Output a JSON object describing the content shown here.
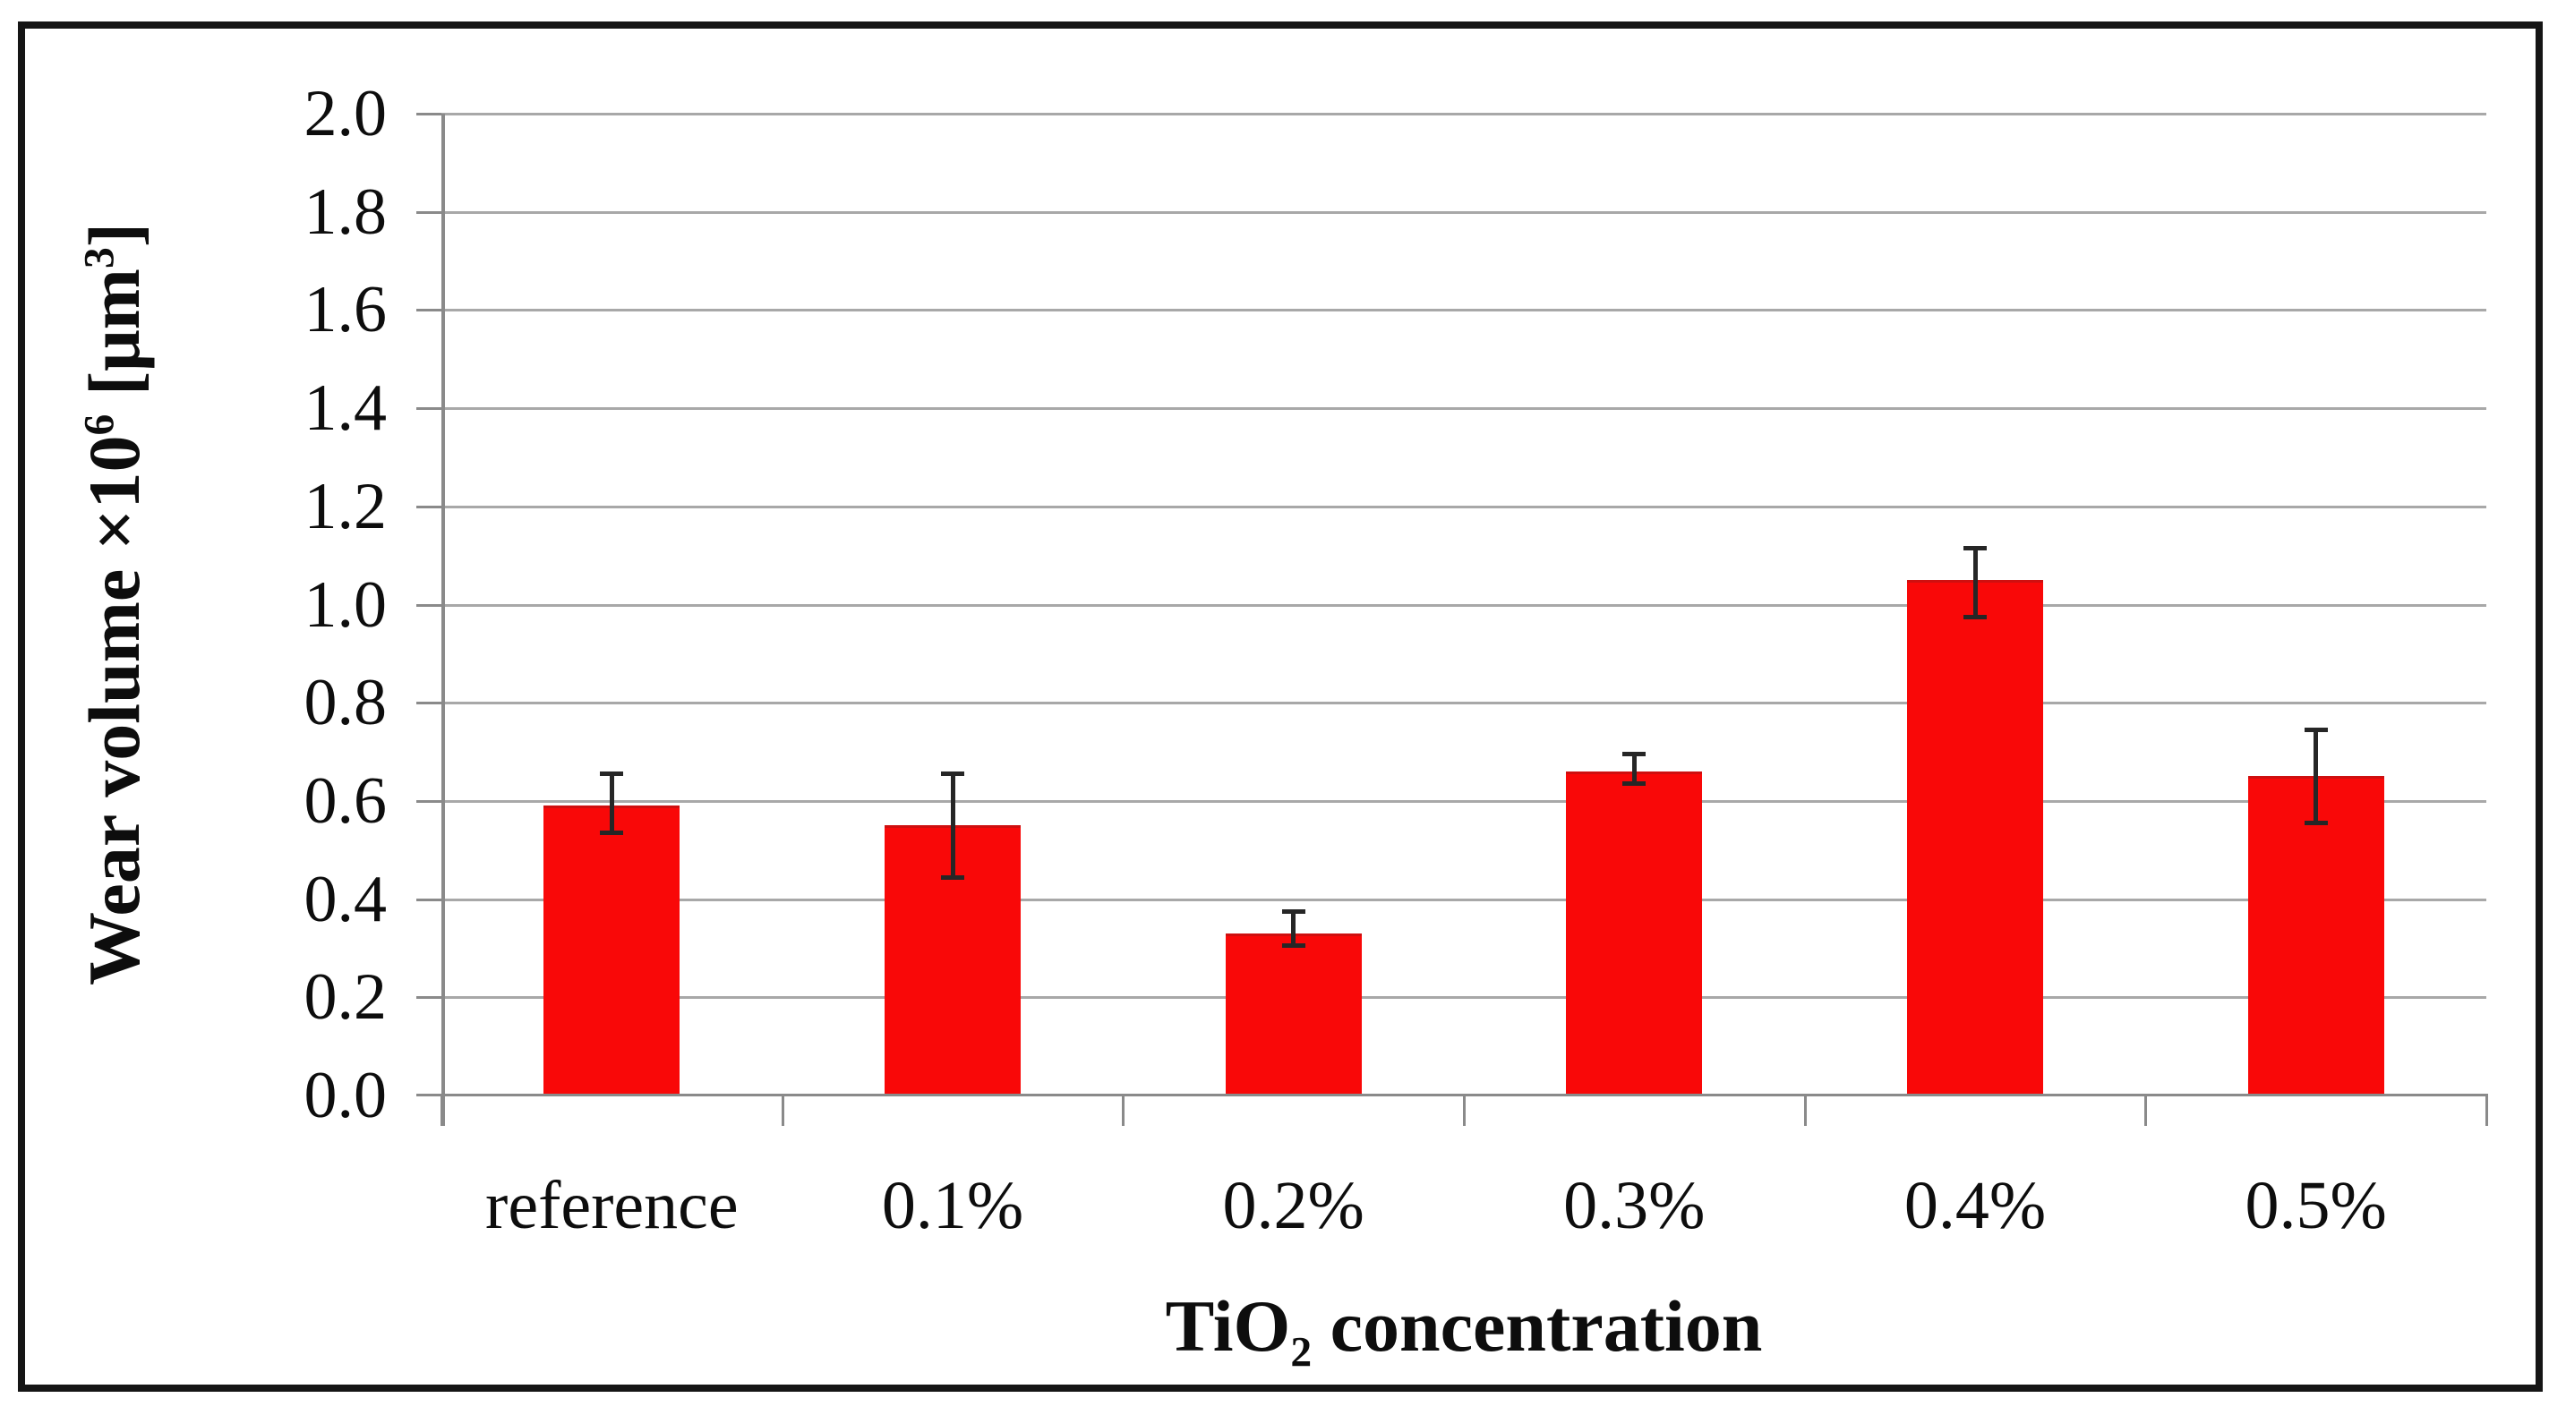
{
  "chart_data": {
    "type": "bar",
    "title": "",
    "categories": [
      "reference",
      "0.1%",
      "0.2%",
      "0.3%",
      "0.4%",
      "0.5%"
    ],
    "series": [
      {
        "name": "Wear volume",
        "values": [
          0.59,
          0.55,
          0.33,
          0.66,
          1.05,
          0.65
        ],
        "error_upper": [
          0.66,
          0.66,
          0.38,
          0.7,
          1.12,
          0.75
        ],
        "error_lower": [
          0.53,
          0.44,
          0.3,
          0.63,
          0.97,
          0.55
        ]
      }
    ],
    "xlabel": "TiO₂ concentration",
    "ylabel": "Wear volume ×10⁶ [μm³]",
    "xlabel_parts": [
      {
        "t": "TiO"
      },
      {
        "t": "2",
        "sub": true
      },
      {
        "t": " concentration"
      }
    ],
    "ylabel_parts": [
      {
        "t": "Wear volume ×10"
      },
      {
        "t": "6",
        "sup": true
      },
      {
        "t": " [μm"
      },
      {
        "t": "3",
        "sup": true
      },
      {
        "t": "]"
      }
    ],
    "y_ticks": [
      "0.0",
      "0.2",
      "0.4",
      "0.6",
      "0.8",
      "1.0",
      "1.2",
      "1.4",
      "1.6",
      "1.8",
      "2.0"
    ],
    "ylim": [
      0,
      2
    ],
    "grid": true,
    "legend_position": "none",
    "colors": {
      "bar_fill": "#f90808",
      "bar_edge": "#cf0f0f",
      "error_bar": "#262626",
      "gridline": "#a8a8a8",
      "axis": "#8a8a8a",
      "frame": "#151515",
      "background": "#ffffff",
      "text": "#0d0d0d"
    }
  }
}
